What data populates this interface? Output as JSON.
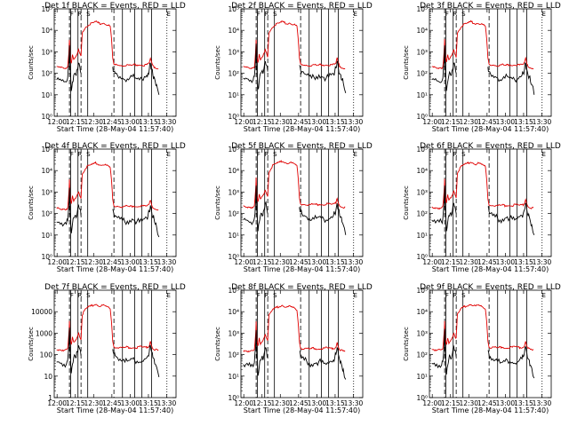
{
  "chart_data": {
    "type": "line",
    "layout": "3x3 grid",
    "ylabel": "Counts/sec",
    "xlabel": "Start Time (28-May-04 11:57:40)",
    "y_scale": "log",
    "ylim": [
      1,
      100000
    ],
    "x_minutes": [
      0,
      100
    ],
    "xtick_labels": [
      "12:00",
      "12:15",
      "12:30",
      "12:45",
      "13:00",
      "13:15",
      "13:30"
    ],
    "xtick_minutes": [
      2.33,
      17.33,
      32.33,
      47.33,
      62.33,
      77.33,
      92.33
    ],
    "ytick_labels_exponent": [
      "10⁰",
      "10¹",
      "10²",
      "10³",
      "10⁴",
      "10⁵"
    ],
    "ytick_labels_plain": [
      "1",
      "10",
      "100",
      "1000",
      "10000"
    ],
    "series": [
      {
        "name": "Events",
        "color": "#000000"
      },
      {
        "name": "LLD",
        "color": "#e00000"
      }
    ],
    "interval_markers": {
      "solid_minutes": [
        13.5,
        19.5,
        27.5,
        56,
        66,
        72,
        80
      ],
      "dashed_minutes": [
        12.5,
        22,
        49
      ],
      "dotted_minutes": [
        92.5
      ],
      "small_labels": [
        {
          "text": "F",
          "minute": 14.5
        },
        {
          "text": "R",
          "minute": 21
        },
        {
          "text": "S",
          "minute": 28
        },
        {
          "text": "E",
          "minute": 94
        }
      ]
    },
    "representative_profile": {
      "minutes": [
        2,
        4,
        6,
        8,
        10,
        11,
        12,
        12.5,
        13,
        14,
        15,
        16,
        17,
        18,
        19,
        20,
        21,
        22,
        23,
        24,
        26,
        28,
        30,
        32,
        34,
        36,
        38,
        40,
        42,
        44,
        46,
        47,
        48,
        49,
        50,
        52,
        54,
        56,
        58,
        60,
        62,
        64,
        66,
        68,
        70,
        72,
        74,
        76,
        77,
        78,
        79,
        80,
        81,
        82,
        83,
        84,
        86
      ],
      "llb_lld": [
        200,
        190,
        185,
        180,
        180,
        200,
        900,
        4000,
        600,
        300,
        700,
        400,
        500,
        600,
        800,
        1200,
        800,
        600,
        8000,
        10000,
        15000,
        18000,
        20000,
        22000,
        25000,
        22000,
        20000,
        22000,
        20000,
        18000,
        15000,
        4000,
        500,
        260,
        240,
        250,
        240,
        230,
        240,
        250,
        230,
        240,
        250,
        240,
        260,
        250,
        240,
        250,
        260,
        300,
        500,
        300,
        220,
        200,
        190,
        180,
        170
      ],
      "events": [
        50,
        50,
        45,
        40,
        40,
        60,
        300,
        2000,
        150,
        15,
        40,
        80,
        100,
        80,
        150,
        300,
        200,
        100,
        null,
        null,
        null,
        null,
        null,
        null,
        null,
        null,
        null,
        null,
        null,
        null,
        null,
        null,
        200,
        120,
        100,
        80,
        70,
        60,
        50,
        55,
        60,
        70,
        60,
        55,
        50,
        55,
        70,
        80,
        100,
        150,
        300,
        150,
        80,
        70,
        40,
        30,
        10
      ]
    },
    "panels": [
      {
        "title": "Det 1f BLACK = Events, RED = LLD",
        "ytick_style": "exponent",
        "lld_scale": 1.0,
        "events_scale": 1.0,
        "red_peak": 25000
      },
      {
        "title": "Det 2f BLACK = Events, RED = LLD",
        "ytick_style": "exponent",
        "lld_scale": 1.0,
        "events_scale": 1.2,
        "red_peak": 25000
      },
      {
        "title": "Det 3f BLACK = Events, RED = LLD",
        "ytick_style": "exponent",
        "lld_scale": 1.0,
        "events_scale": 1.0,
        "red_peak": 20000
      },
      {
        "title": "Det 4f BLACK = Events, RED = LLD",
        "ytick_style": "exponent",
        "lld_scale": 0.9,
        "events_scale": 0.8,
        "red_peak": 20000
      },
      {
        "title": "Det 5f BLACK = Events, RED = LLD",
        "ytick_style": "exponent",
        "lld_scale": 1.1,
        "events_scale": 1.0,
        "red_peak": 20000
      },
      {
        "title": "Det 6f BLACK = Events, RED = LLD",
        "ytick_style": "exponent",
        "lld_scale": 1.0,
        "events_scale": 1.0,
        "red_peak": 20000
      },
      {
        "title": "Det 7f BLACK = Events, RED = LLD",
        "ytick_style": "plain",
        "lld_scale": 0.9,
        "events_scale": 0.9,
        "red_peak": 25000
      },
      {
        "title": "Det 8f BLACK = Events, RED = LLD",
        "ytick_style": "exponent",
        "lld_scale": 0.8,
        "events_scale": 0.7,
        "red_peak": 20000
      },
      {
        "title": "Det 9f BLACK = Events, RED = LLD",
        "ytick_style": "exponent",
        "lld_scale": 0.9,
        "events_scale": 0.8,
        "red_peak": 20000
      }
    ]
  }
}
